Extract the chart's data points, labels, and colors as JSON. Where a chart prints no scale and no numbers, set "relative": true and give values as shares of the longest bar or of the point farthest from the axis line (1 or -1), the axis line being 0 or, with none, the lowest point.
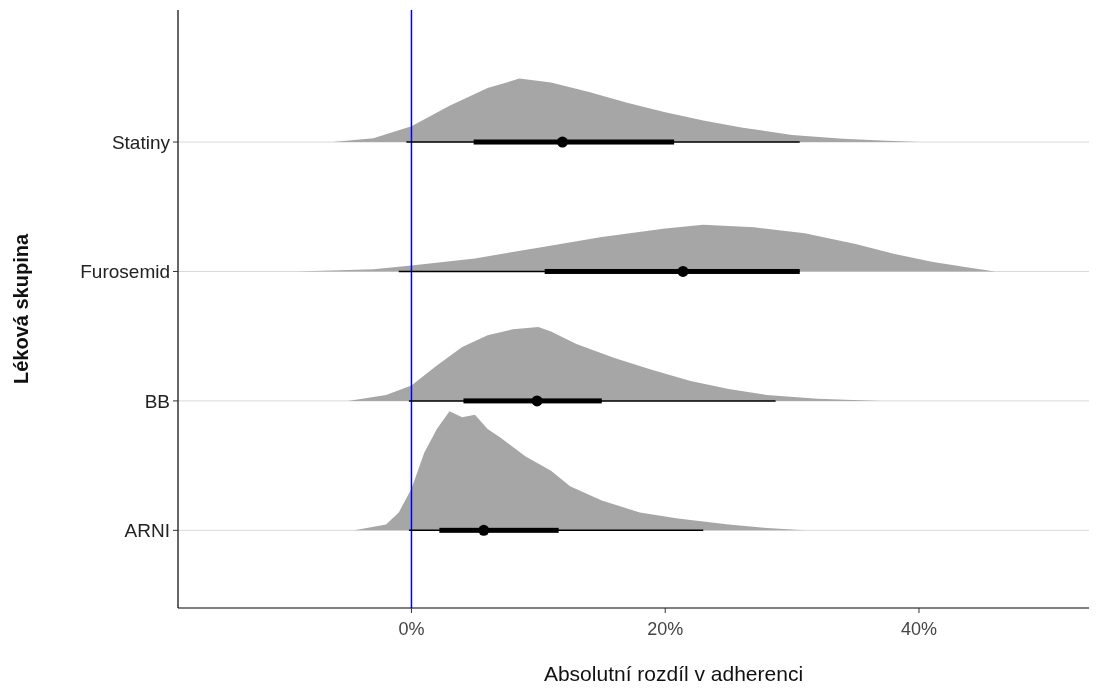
{
  "chart_data": [
    {
      "type": "box",
      "orientation": "horizontal",
      "xlabel": "Absolutní rozdíl v adherenci",
      "ylabel": "Léková skupina",
      "categories": [
        "Statiny",
        "Furosemid",
        "BB",
        "ARNI"
      ],
      "boxes": [
        {
          "low": -0.4,
          "q1": 4.9,
          "median": 11.9,
          "q3": 20.7,
          "high": 30.6
        },
        {
          "low": -1.0,
          "q1": 10.5,
          "median": 21.4,
          "q3": 30.6,
          "high": 30.6
        },
        {
          "low": -0.2,
          "q1": 4.1,
          "median": 9.9,
          "q3": 15,
          "high": 28.7
        },
        {
          "low": -0.2,
          "q1": 2.2,
          "median": 5.7,
          "q3": 11.6,
          "high": 23
        }
      ],
      "xlim": [
        -18.4,
        53.4
      ],
      "xticks": [
        {
          "value": 0,
          "label": "0%"
        },
        {
          "value": 20,
          "label": "20%"
        },
        {
          "value": 40,
          "label": "40%"
        }
      ],
      "ref_lines": [
        {
          "axis": "x",
          "value": 0,
          "color": "#0000ff"
        }
      ],
      "grid": false
    },
    {
      "type": "area",
      "relative": true,
      "tick_labels": false,
      "xlim": [
        -18.4,
        53.4
      ],
      "series": [
        {
          "color": "#a6a6a6",
          "x": [
            -6.2,
            -3,
            0,
            3,
            6,
            8.5,
            11,
            14,
            17,
            20,
            23,
            26,
            30,
            34,
            37.5,
            40,
            48.5
          ],
          "values": [
            0,
            0.06,
            0.25,
            0.57,
            0.85,
            1,
            0.94,
            0.79,
            0.62,
            0.47,
            0.34,
            0.23,
            0.11,
            0.05,
            0.02,
            0,
            0
          ]
        }
      ]
    },
    {
      "type": "area",
      "relative": true,
      "tick_labels": false,
      "xlim": [
        -18.4,
        53.4
      ],
      "series": [
        {
          "color": "#a6a6a6",
          "x": [
            -9,
            -3,
            0,
            5,
            10,
            15,
            20,
            23,
            27,
            31,
            35,
            38,
            41,
            44,
            46
          ],
          "values": [
            0,
            0.05,
            0.13,
            0.28,
            0.51,
            0.74,
            0.92,
            1,
            0.95,
            0.82,
            0.59,
            0.38,
            0.21,
            0.08,
            0
          ]
        }
      ]
    },
    {
      "type": "area",
      "relative": true,
      "tick_labels": false,
      "xlim": [
        -18.4,
        53.4
      ],
      "series": [
        {
          "color": "#a6a6a6",
          "x": [
            -5,
            -2,
            0,
            2,
            4,
            6,
            8,
            10,
            11,
            13,
            16,
            19,
            22,
            25,
            28,
            32,
            37
          ],
          "values": [
            0,
            0.08,
            0.21,
            0.48,
            0.73,
            0.89,
            0.97,
            1,
            0.94,
            0.77,
            0.58,
            0.42,
            0.27,
            0.16,
            0.08,
            0.03,
            0
          ]
        }
      ]
    },
    {
      "type": "area",
      "relative": true,
      "tick_labels": false,
      "xlim": [
        -18.4,
        53.4
      ],
      "series": [
        {
          "color": "#a6a6a6",
          "x": [
            -4.5,
            -2,
            -1,
            0,
            1,
            2,
            3,
            4,
            5,
            6,
            7,
            9,
            11,
            12.5,
            15,
            18,
            21,
            25,
            28,
            31
          ],
          "values": [
            0,
            0.05,
            0.15,
            0.35,
            0.65,
            0.85,
            1,
            0.95,
            0.97,
            0.85,
            0.78,
            0.62,
            0.5,
            0.37,
            0.25,
            0.15,
            0.1,
            0.05,
            0.02,
            0
          ]
        }
      ]
    }
  ]
}
